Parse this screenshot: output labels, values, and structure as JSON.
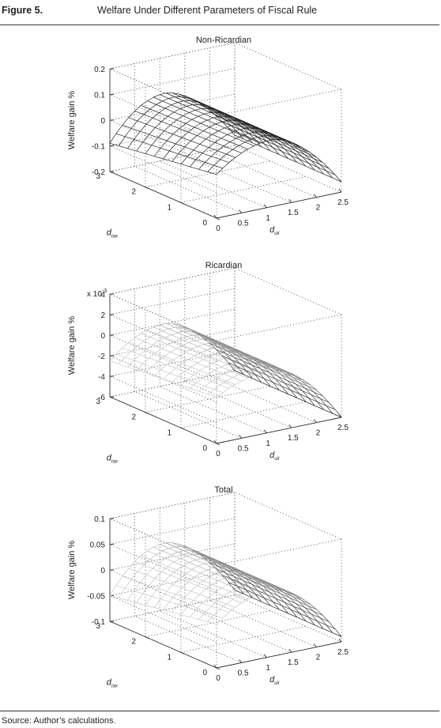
{
  "figure": {
    "label": "Figure 5.",
    "title": "Welfare Under Different Parameters of Fiscal Rule",
    "source": "Source: Author’s calculations."
  },
  "colors": {
    "axis": "#333333",
    "grid": "#555555",
    "text": "#222222"
  },
  "chart_data": [
    {
      "type": "surface",
      "title": "Non-Ricardian",
      "zlabel": "Welfare gain %",
      "xlabel": "d",
      "xlabel_sub": "oil",
      "ylabel": "d",
      "ylabel_sub": "tax",
      "multiplier": "",
      "x_ticks": [
        "0",
        "0.5",
        "1",
        "1.5",
        "2",
        "2.5"
      ],
      "y_ticks": [
        "0",
        "1",
        "2",
        "3"
      ],
      "z_ticks": [
        "-0.2",
        "-0.1",
        "0",
        "0.1",
        "0.2"
      ],
      "xlim": [
        0,
        2.5
      ],
      "ylim": [
        0,
        3
      ],
      "zlim": [
        -0.2,
        0.2
      ],
      "x_peak": 1.1,
      "peak_value": 0.06,
      "right_end_value": -0.16,
      "left_front_value": -0.03,
      "left_back_value": -0.09,
      "shade": "dark"
    },
    {
      "type": "surface",
      "title": "Ricardian",
      "zlabel": "Welfare gain %",
      "xlabel": "d",
      "xlabel_sub": "oil",
      "ylabel": "d",
      "ylabel_sub": "tax",
      "multiplier": "x 10",
      "multiplier_exp": "-3",
      "x_ticks": [
        "0",
        "0.5",
        "1",
        "1.5",
        "2",
        "2.5"
      ],
      "y_ticks": [
        "0",
        "1",
        "2",
        "3"
      ],
      "z_ticks": [
        "-6",
        "-4",
        "-2",
        "0",
        "2",
        "4"
      ],
      "xlim": [
        0,
        2.5
      ],
      "ylim": [
        0,
        3
      ],
      "zlim": [
        -6,
        4
      ],
      "x_peak": 1.1,
      "peak_value": 0,
      "right_end_value": -6,
      "left_front_value": -1.5,
      "left_back_value": -2.5,
      "shade": "light"
    },
    {
      "type": "surface",
      "title": "Total",
      "zlabel": "Welfare gain %",
      "xlabel": "d",
      "xlabel_sub": "oil",
      "ylabel": "d",
      "ylabel_sub": "tax",
      "multiplier": "",
      "x_ticks": [
        "0",
        "0.5",
        "1",
        "1.5",
        "2",
        "2.5"
      ],
      "y_ticks": [
        "0",
        "1",
        "2",
        "3"
      ],
      "z_ticks": [
        "-0.1",
        "-0.05",
        "0",
        "0.05",
        "0.1"
      ],
      "xlim": [
        0,
        2.5
      ],
      "ylim": [
        0,
        3
      ],
      "zlim": [
        -0.1,
        0.1
      ],
      "x_peak": 1.1,
      "peak_value": 0.03,
      "right_end_value": -0.09,
      "left_front_value": -0.015,
      "left_back_value": -0.05,
      "shade": "light"
    }
  ]
}
